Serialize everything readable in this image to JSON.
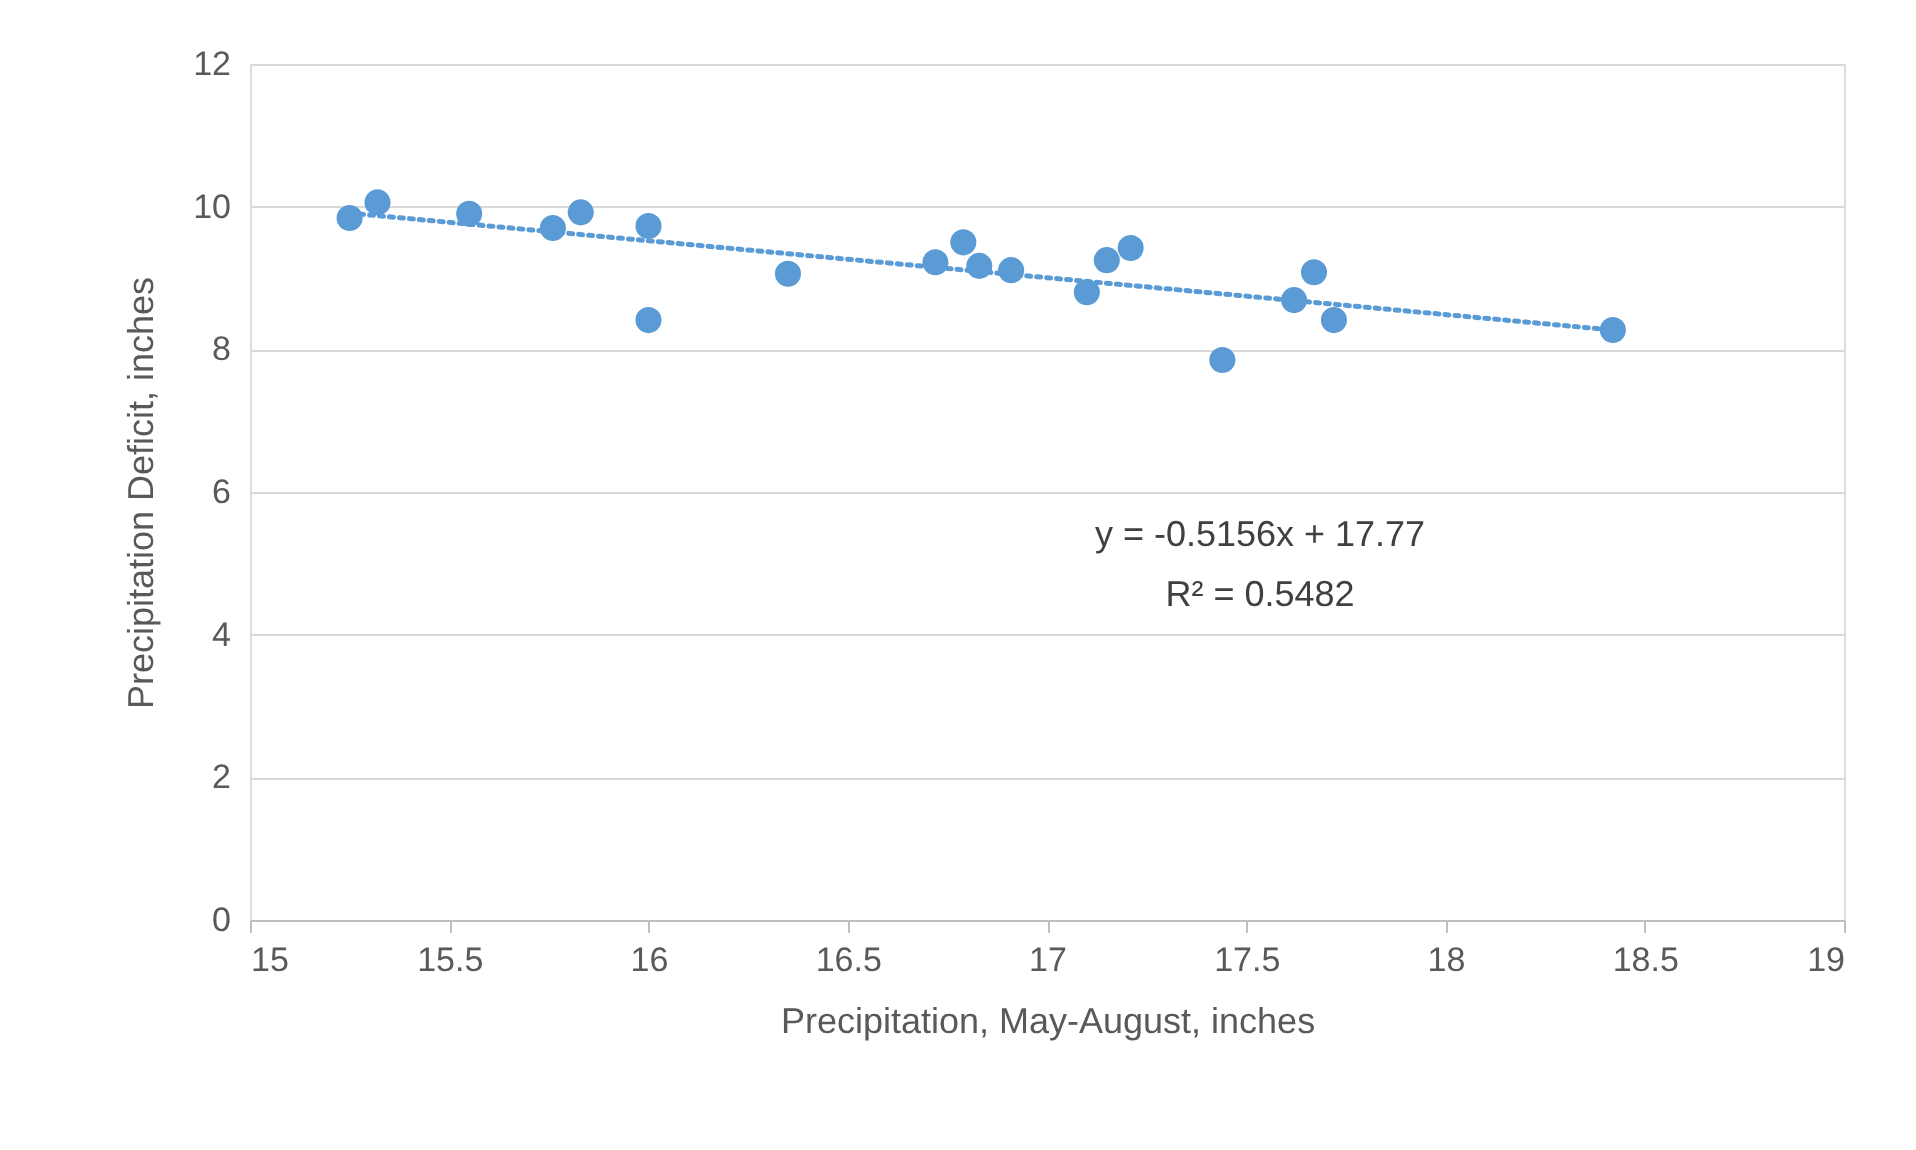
{
  "chart_data": {
    "type": "scatter",
    "xlabel": "Precipitation, May-August, inches",
    "ylabel": "Precipitation Deficit, inches",
    "xlim": [
      15,
      19
    ],
    "xticks": [
      15,
      15.5,
      16,
      16.5,
      17,
      17.5,
      18,
      18.5,
      19
    ],
    "ylim": [
      0,
      12
    ],
    "yticks": [
      0,
      2,
      4,
      6,
      8,
      10,
      12
    ],
    "grid": "y",
    "marker": "circle",
    "annotations": [
      "y = -0.5156x + 17.77",
      "R² = 0.5482"
    ],
    "series": [
      {
        "color": "#5b9bd5",
        "x": [
          15.25,
          15.32,
          15.55,
          15.76,
          15.83,
          16.0,
          16.0,
          16.35,
          16.72,
          16.79,
          16.83,
          16.91,
          17.1,
          17.15,
          17.21,
          17.44,
          17.62,
          17.67,
          17.72,
          18.42
        ],
        "values": [
          9.84,
          10.06,
          9.9,
          9.7,
          9.92,
          9.73,
          8.41,
          9.06,
          9.22,
          9.5,
          9.17,
          9.11,
          8.8,
          9.25,
          9.42,
          7.85,
          8.69,
          9.08,
          8.41,
          8.27
        ]
      },
      {
        "type": "line",
        "color": "#5b9bd5",
        "line_style": "dotted",
        "marker": "none",
        "x": [
          15.25,
          18.42
        ],
        "values": [
          9.91,
          8.27
        ]
      }
    ]
  }
}
